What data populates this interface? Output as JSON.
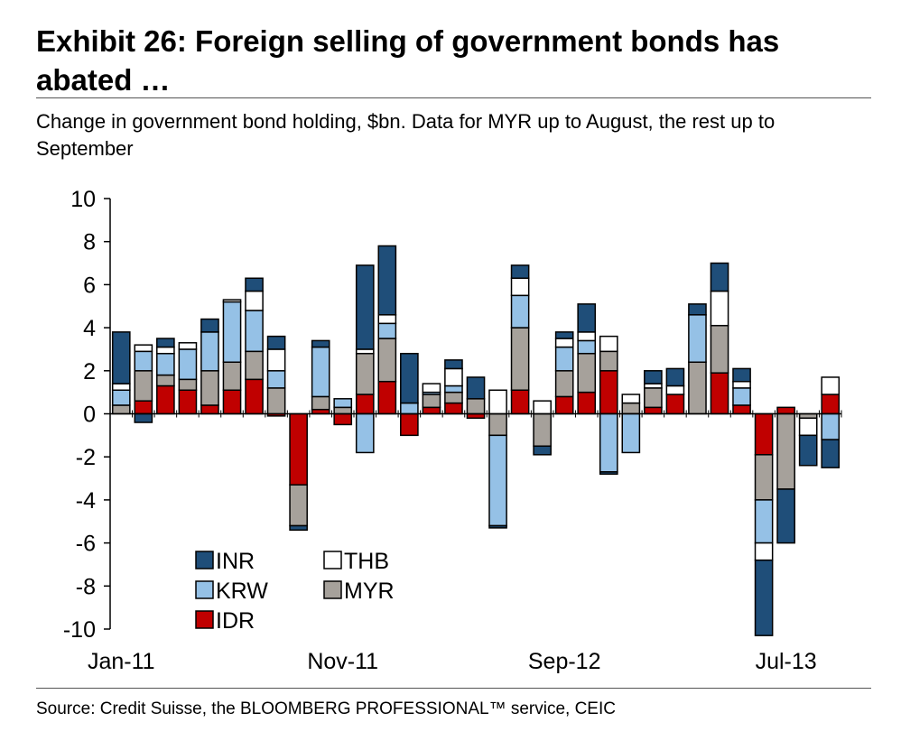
{
  "header": {
    "title": "Exhibit 26: Foreign selling of government bonds has abated …",
    "subtitle": "Change in government bond holding, $bn. Data for MYR up to August, the rest up to September"
  },
  "footer": {
    "source": "Source: Credit Suisse, the BLOOMBERG PROFESSIONAL™ service, CEIC"
  },
  "chart_data": {
    "type": "bar",
    "stacked": true,
    "title": "",
    "xlabel": "",
    "ylabel": "",
    "ylim": [
      -10,
      10
    ],
    "yticks": [
      10,
      8,
      6,
      4,
      2,
      0,
      -2,
      -4,
      -6,
      -8,
      -10
    ],
    "grid": false,
    "legend_position": "bottom-left",
    "categories": [
      "Jan-11",
      "Feb-11",
      "Mar-11",
      "Apr-11",
      "May-11",
      "Jun-11",
      "Jul-11",
      "Aug-11",
      "Sep-11",
      "Oct-11",
      "Nov-11",
      "Dec-11",
      "Jan-12",
      "Feb-12",
      "Mar-12",
      "Apr-12",
      "May-12",
      "Jun-12",
      "Jul-12",
      "Aug-12",
      "Sep-12",
      "Oct-12",
      "Nov-12",
      "Dec-12",
      "Jan-13",
      "Feb-13",
      "Mar-13",
      "Apr-13",
      "May-13",
      "Jun-13",
      "Jul-13",
      "Aug-13",
      "Sep-13"
    ],
    "x_tick_labels": [
      "Jan-11",
      "Nov-11",
      "Sep-12",
      "Jul-13"
    ],
    "x_tick_label_categories": [
      "Jan-11",
      "Nov-11",
      "Sep-12",
      "Jul-13"
    ],
    "series": [
      {
        "name": "IDR",
        "color": "#c00000",
        "values": [
          0.0,
          0.6,
          1.3,
          1.1,
          0.4,
          1.1,
          1.6,
          -0.1,
          -3.3,
          0.2,
          -0.5,
          0.9,
          1.5,
          -1.0,
          0.3,
          0.5,
          -0.2,
          0.0,
          1.1,
          0.0,
          0.8,
          1.0,
          2.0,
          0.0,
          0.3,
          0.9,
          0.0,
          1.9,
          0.4,
          -1.9,
          0.3,
          0.0,
          0.9
        ]
      },
      {
        "name": "MYR",
        "color": "#a6a19b",
        "values": [
          0.4,
          1.4,
          0.5,
          0.5,
          1.6,
          1.3,
          1.3,
          1.2,
          -1.9,
          0.6,
          0.3,
          1.9,
          2.0,
          0.0,
          0.6,
          0.5,
          0.7,
          -1.0,
          2.9,
          -1.5,
          1.2,
          1.8,
          0.9,
          0.5,
          0.9,
          0.0,
          2.4,
          2.2,
          0.0,
          -2.1,
          -3.5,
          -0.2,
          0.0
        ]
      },
      {
        "name": "KRW",
        "color": "#95c1e6",
        "values": [
          0.7,
          0.9,
          1.0,
          1.4,
          1.8,
          2.8,
          1.9,
          0.8,
          0.0,
          2.3,
          0.4,
          -1.8,
          0.7,
          0.5,
          0.1,
          0.3,
          0.0,
          -4.2,
          1.5,
          0.0,
          1.1,
          0.6,
          -2.7,
          -1.8,
          0.0,
          0.0,
          2.2,
          0.0,
          0.8,
          -2.0,
          0.0,
          0.0,
          -1.2
        ]
      },
      {
        "name": "THB",
        "color": "#ffffff",
        "values": [
          0.3,
          0.3,
          0.3,
          0.3,
          0.0,
          0.1,
          0.9,
          1.0,
          0.0,
          0.0,
          0.0,
          0.2,
          0.4,
          0.0,
          0.4,
          0.8,
          0.0,
          1.1,
          0.8,
          0.6,
          0.4,
          0.4,
          0.7,
          0.4,
          0.2,
          0.4,
          0.0,
          1.6,
          0.3,
          -0.8,
          0.0,
          -0.8,
          0.8
        ]
      },
      {
        "name": "INR",
        "color": "#1f4e79",
        "values": [
          2.4,
          -0.4,
          0.4,
          0.0,
          0.6,
          0.0,
          0.6,
          0.6,
          -0.2,
          0.3,
          0.0,
          3.9,
          3.2,
          2.3,
          0.0,
          0.4,
          1.0,
          -0.1,
          0.6,
          -0.4,
          0.3,
          1.3,
          -0.1,
          0.0,
          0.6,
          0.8,
          0.5,
          1.3,
          0.6,
          -3.5,
          -2.5,
          -1.4,
          -1.3
        ]
      }
    ]
  }
}
